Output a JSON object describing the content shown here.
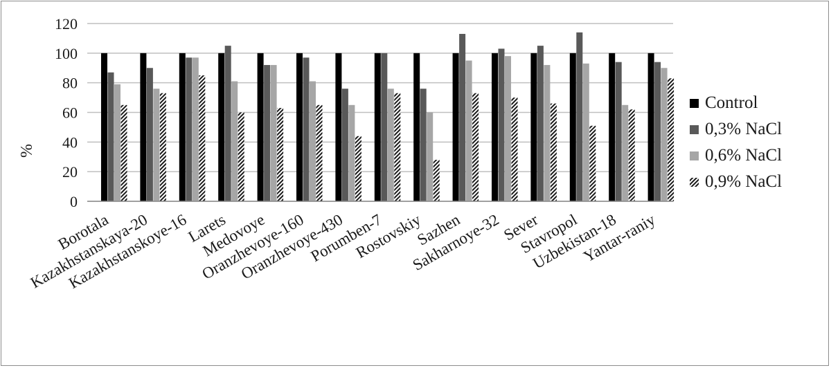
{
  "chart_data": {
    "type": "bar",
    "title": "",
    "xlabel": "",
    "ylabel": "%",
    "ylim": [
      0,
      120
    ],
    "yticks": [
      0,
      20,
      40,
      60,
      80,
      100,
      120
    ],
    "grid": true,
    "legend_position": "right",
    "categories": [
      "Borotala",
      "Kazakhstanskaya-20",
      "Kazakhstanskoye-16",
      "Larets",
      "Medovoye",
      "Oranzhevoye-160",
      "Oranzhevoye-430",
      "Porumben-7",
      "Rostovskiy",
      "Sazhen",
      "Sakharnoye-32",
      "Sever",
      "Stavropol",
      "Uzbekistan-18",
      "Yantar-raniy"
    ],
    "series": [
      {
        "name": "Control",
        "color": "#000000",
        "pattern": "solid",
        "values": [
          100,
          100,
          100,
          100,
          100,
          100,
          100,
          100,
          100,
          100,
          100,
          100,
          100,
          100,
          100
        ]
      },
      {
        "name": "0,3% NaCl",
        "color": "#595959",
        "pattern": "solid",
        "values": [
          87,
          90,
          97,
          105,
          92,
          97,
          76,
          100,
          76,
          113,
          103,
          105,
          114,
          94,
          94
        ]
      },
      {
        "name": "0,6% NaCl",
        "color": "#a6a6a6",
        "pattern": "solid",
        "values": [
          79,
          76,
          97,
          81,
          92,
          81,
          65,
          76,
          60,
          95,
          98,
          92,
          93,
          65,
          90
        ]
      },
      {
        "name": "0,9% NaCl",
        "color": "#262626",
        "pattern": "hatch",
        "values": [
          65,
          73,
          85,
          60,
          63,
          65,
          44,
          73,
          28,
          73,
          70,
          66,
          51,
          62,
          83
        ]
      }
    ]
  }
}
